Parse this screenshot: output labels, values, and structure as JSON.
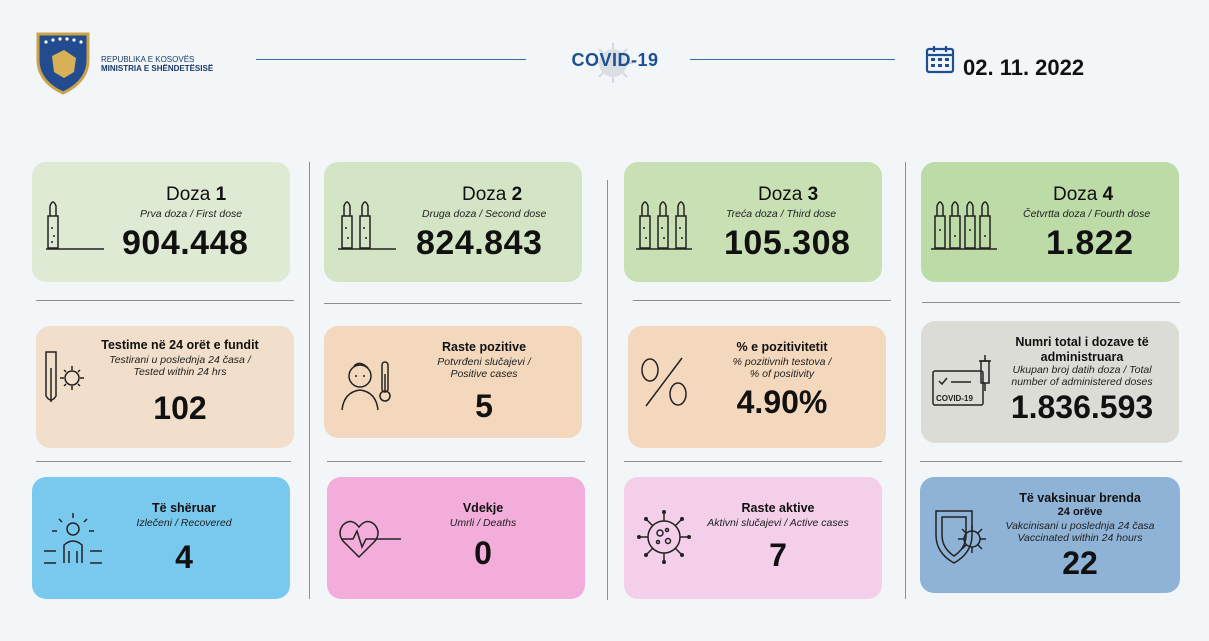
{
  "header": {
    "logo_line1": "REPUBLIKA E KOSOVËS",
    "logo_line2": "MINISTRIA E SHËNDETËSISË",
    "title": "COVID-19",
    "date": "02. 11. 2022"
  },
  "doses": [
    {
      "word": "Doza",
      "num": "1",
      "sub": "Prva doza / First dose",
      "value": "904.448"
    },
    {
      "word": "Doza",
      "num": "2",
      "sub": "Druga doza / Second dose",
      "value": "824.843"
    },
    {
      "word": "Doza",
      "num": "3",
      "sub": "Treća doza / Third dose",
      "value": "105.308"
    },
    {
      "word": "Doza",
      "num": "4",
      "sub": "Četvrtta doza / Fourth dose",
      "value": "1.822"
    }
  ],
  "tests": {
    "title": "Testime në 24 orët e fundit",
    "sub1": "Testirani u poslednja 24 časa /",
    "sub2": "Tested within 24 hrs",
    "value": "102"
  },
  "positive": {
    "title": "Raste pozitive",
    "sub1": "Potvrđeni slučajevi /",
    "sub2": "Positive cases",
    "value": "5"
  },
  "positivity": {
    "title": "% e pozitivitetit",
    "sub1": "% pozitivnih testova /",
    "sub2": "% of positivity",
    "value": "4.90%"
  },
  "total_doses": {
    "title1": "Numri total i dozave të",
    "title2": "administruara",
    "sub1": "Ukupan broj datih doza / Total",
    "sub2": "number of administered doses",
    "value": "1.836.593",
    "icon_label": "COVID-19"
  },
  "recovered": {
    "title": "Të shëruar",
    "sub": "Izlečeni / Recovered",
    "value": "4"
  },
  "deaths": {
    "title": "Vdekje",
    "sub": "Umrli / Deaths",
    "value": "0"
  },
  "active": {
    "title": "Raste aktive",
    "sub": "Aktivni slučajevi / Active cases",
    "value": "7"
  },
  "vaccinated24": {
    "title1": "Të vaksinuar brenda",
    "title2": "24 orëve",
    "sub1": "Vakcinisani u poslednja 24 časa",
    "sub2": "Vaccinated within 24 hours",
    "value": "22"
  }
}
